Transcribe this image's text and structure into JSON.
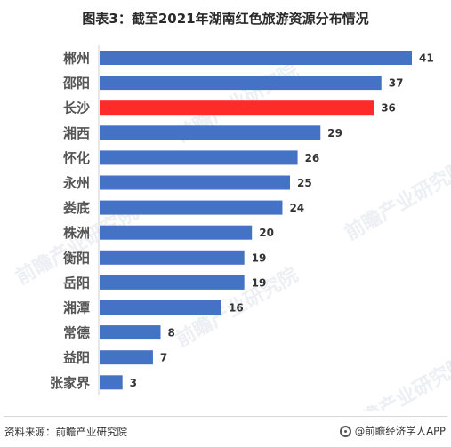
{
  "title": "图表3：截至2021年湖南红色旅游资源分布情况",
  "source": "资料来源：前瞻产业研究院",
  "brand": "@前瞻经济学人APP",
  "watermark": "前瞻产业研究院",
  "colors": {
    "bar": "#4472c4",
    "highlight": "#ff2a2a",
    "label": "#555555",
    "value": "#333333"
  },
  "chart_data": {
    "type": "bar",
    "orientation": "horizontal",
    "categories": [
      "郴州",
      "邵阳",
      "长沙",
      "湘西",
      "怀化",
      "永州",
      "娄底",
      "株洲",
      "衡阳",
      "岳阳",
      "湘潭",
      "常德",
      "益阳",
      "张家界"
    ],
    "values": [
      41,
      37,
      36,
      29,
      26,
      25,
      24,
      20,
      19,
      19,
      16,
      8,
      7,
      3
    ],
    "highlight": "长沙",
    "xlim": [
      0,
      41
    ],
    "grid": false,
    "legend": "none"
  }
}
